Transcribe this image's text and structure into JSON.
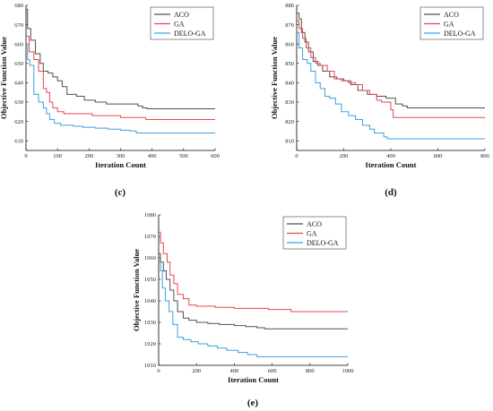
{
  "chart_data": [
    {
      "type": "line",
      "panel_label": "(c)",
      "xlabel": "Iteration Count",
      "ylabel": "Objective Function Value",
      "xlim": [
        0,
        600
      ],
      "ylim": [
        605,
        680
      ],
      "xticks": [
        0,
        100,
        200,
        300,
        400,
        500,
        600
      ],
      "yticks": [
        610,
        620,
        630,
        640,
        650,
        660,
        670,
        680
      ],
      "legend_position": "top-right",
      "series": [
        {
          "name": "ACO",
          "color": "#505050",
          "x": [
            0,
            5,
            15,
            30,
            45,
            55,
            70,
            85,
            100,
            115,
            130,
            160,
            185,
            220,
            255,
            300,
            330,
            355,
            370,
            385,
            450,
            600
          ],
          "y": [
            678,
            668,
            662,
            655,
            650,
            646,
            645,
            643,
            641,
            638,
            634,
            633,
            631,
            630,
            629,
            629,
            629,
            628,
            627,
            626.5,
            626.5,
            626.5
          ]
        },
        {
          "name": "GA",
          "color": "#e8464f",
          "x": [
            0,
            10,
            25,
            40,
            55,
            65,
            75,
            85,
            100,
            120,
            160,
            210,
            260,
            300,
            350,
            380,
            600
          ],
          "y": [
            664,
            656,
            652,
            646,
            637,
            635,
            630,
            627,
            625,
            624,
            624,
            623,
            623,
            622,
            622,
            621,
            621
          ]
        },
        {
          "name": "DELO-GA",
          "color": "#3f9fe0",
          "x": [
            0,
            5,
            12,
            25,
            40,
            55,
            65,
            75,
            90,
            110,
            150,
            180,
            220,
            260,
            300,
            330,
            350,
            420,
            600
          ],
          "y": [
            660,
            652,
            649,
            634,
            630,
            627,
            624,
            621,
            619,
            618,
            617.5,
            617,
            616.5,
            616,
            615.5,
            615,
            614,
            614,
            614
          ]
        }
      ]
    },
    {
      "type": "line",
      "panel_label": "(d)",
      "xlabel": "Iteration Count",
      "ylabel": "Objective Function Value",
      "xlim": [
        0,
        800
      ],
      "ylim": [
        805,
        880
      ],
      "xticks": [
        0,
        200,
        400,
        600,
        800
      ],
      "yticks": [
        810,
        820,
        830,
        840,
        850,
        860,
        870,
        880
      ],
      "legend_position": "top-right",
      "series": [
        {
          "name": "ACO",
          "color": "#505050",
          "x": [
            0,
            10,
            20,
            35,
            50,
            70,
            90,
            110,
            140,
            170,
            200,
            230,
            260,
            300,
            340,
            380,
            420,
            450,
            470,
            800
          ],
          "y": [
            876,
            873,
            866,
            861,
            856,
            851,
            849,
            846,
            843,
            842,
            841,
            839,
            836,
            834,
            833,
            832,
            829,
            828,
            827,
            827
          ]
        },
        {
          "name": "GA",
          "color": "#e8464f",
          "x": [
            0,
            10,
            25,
            40,
            60,
            80,
            100,
            130,
            160,
            190,
            220,
            250,
            280,
            310,
            340,
            360,
            380,
            400,
            410,
            800
          ],
          "y": [
            872,
            868,
            863,
            858,
            853,
            850,
            849,
            846,
            842,
            841,
            840,
            839,
            836,
            834,
            831,
            830,
            830,
            826,
            822,
            822
          ]
        },
        {
          "name": "DELO-GA",
          "color": "#3f9fe0",
          "x": [
            0,
            10,
            25,
            45,
            60,
            80,
            100,
            120,
            140,
            165,
            190,
            220,
            250,
            280,
            310,
            330,
            350,
            370,
            385,
            400,
            800
          ],
          "y": [
            866,
            858,
            852,
            850,
            846,
            840,
            837,
            833,
            832,
            829,
            825,
            823,
            821,
            818,
            816,
            814,
            814,
            812,
            811,
            811,
            811
          ]
        }
      ]
    },
    {
      "type": "line",
      "panel_label": "(e)",
      "xlabel": "Iteration Count",
      "ylabel": "Objective Function Value",
      "xlim": [
        0,
        1000
      ],
      "ylim": [
        1010,
        1080
      ],
      "xticks": [
        0,
        200,
        400,
        600,
        800,
        1000
      ],
      "yticks": [
        1010,
        1020,
        1030,
        1040,
        1050,
        1060,
        1070,
        1080
      ],
      "legend_position": "top-right",
      "series": [
        {
          "name": "ACO",
          "color": "#505050",
          "x": [
            0,
            10,
            25,
            40,
            60,
            80,
            100,
            130,
            160,
            200,
            260,
            320,
            400,
            460,
            520,
            560,
            600,
            1000
          ],
          "y": [
            1062,
            1058,
            1054,
            1050,
            1045,
            1040,
            1035,
            1032,
            1031,
            1030,
            1029.5,
            1029,
            1028.5,
            1028,
            1027.5,
            1027,
            1027,
            1027
          ]
        },
        {
          "name": "GA",
          "color": "#e8464f",
          "x": [
            0,
            10,
            25,
            45,
            60,
            80,
            100,
            130,
            160,
            200,
            300,
            400,
            500,
            580,
            640,
            700,
            1000
          ],
          "y": [
            1072,
            1067,
            1062,
            1058,
            1052,
            1048,
            1043,
            1041,
            1038,
            1037.5,
            1037,
            1036.5,
            1036.5,
            1036,
            1036,
            1035,
            1035
          ]
        },
        {
          "name": "DELO-GA",
          "color": "#3f9fe0",
          "x": [
            0,
            10,
            20,
            35,
            55,
            75,
            100,
            130,
            170,
            210,
            260,
            310,
            360,
            420,
            470,
            500,
            520,
            1000
          ],
          "y": [
            1058,
            1054,
            1046,
            1040,
            1035,
            1029,
            1023,
            1022,
            1021,
            1020,
            1019,
            1018,
            1017,
            1016,
            1015,
            1015,
            1014,
            1014
          ]
        }
      ]
    }
  ]
}
